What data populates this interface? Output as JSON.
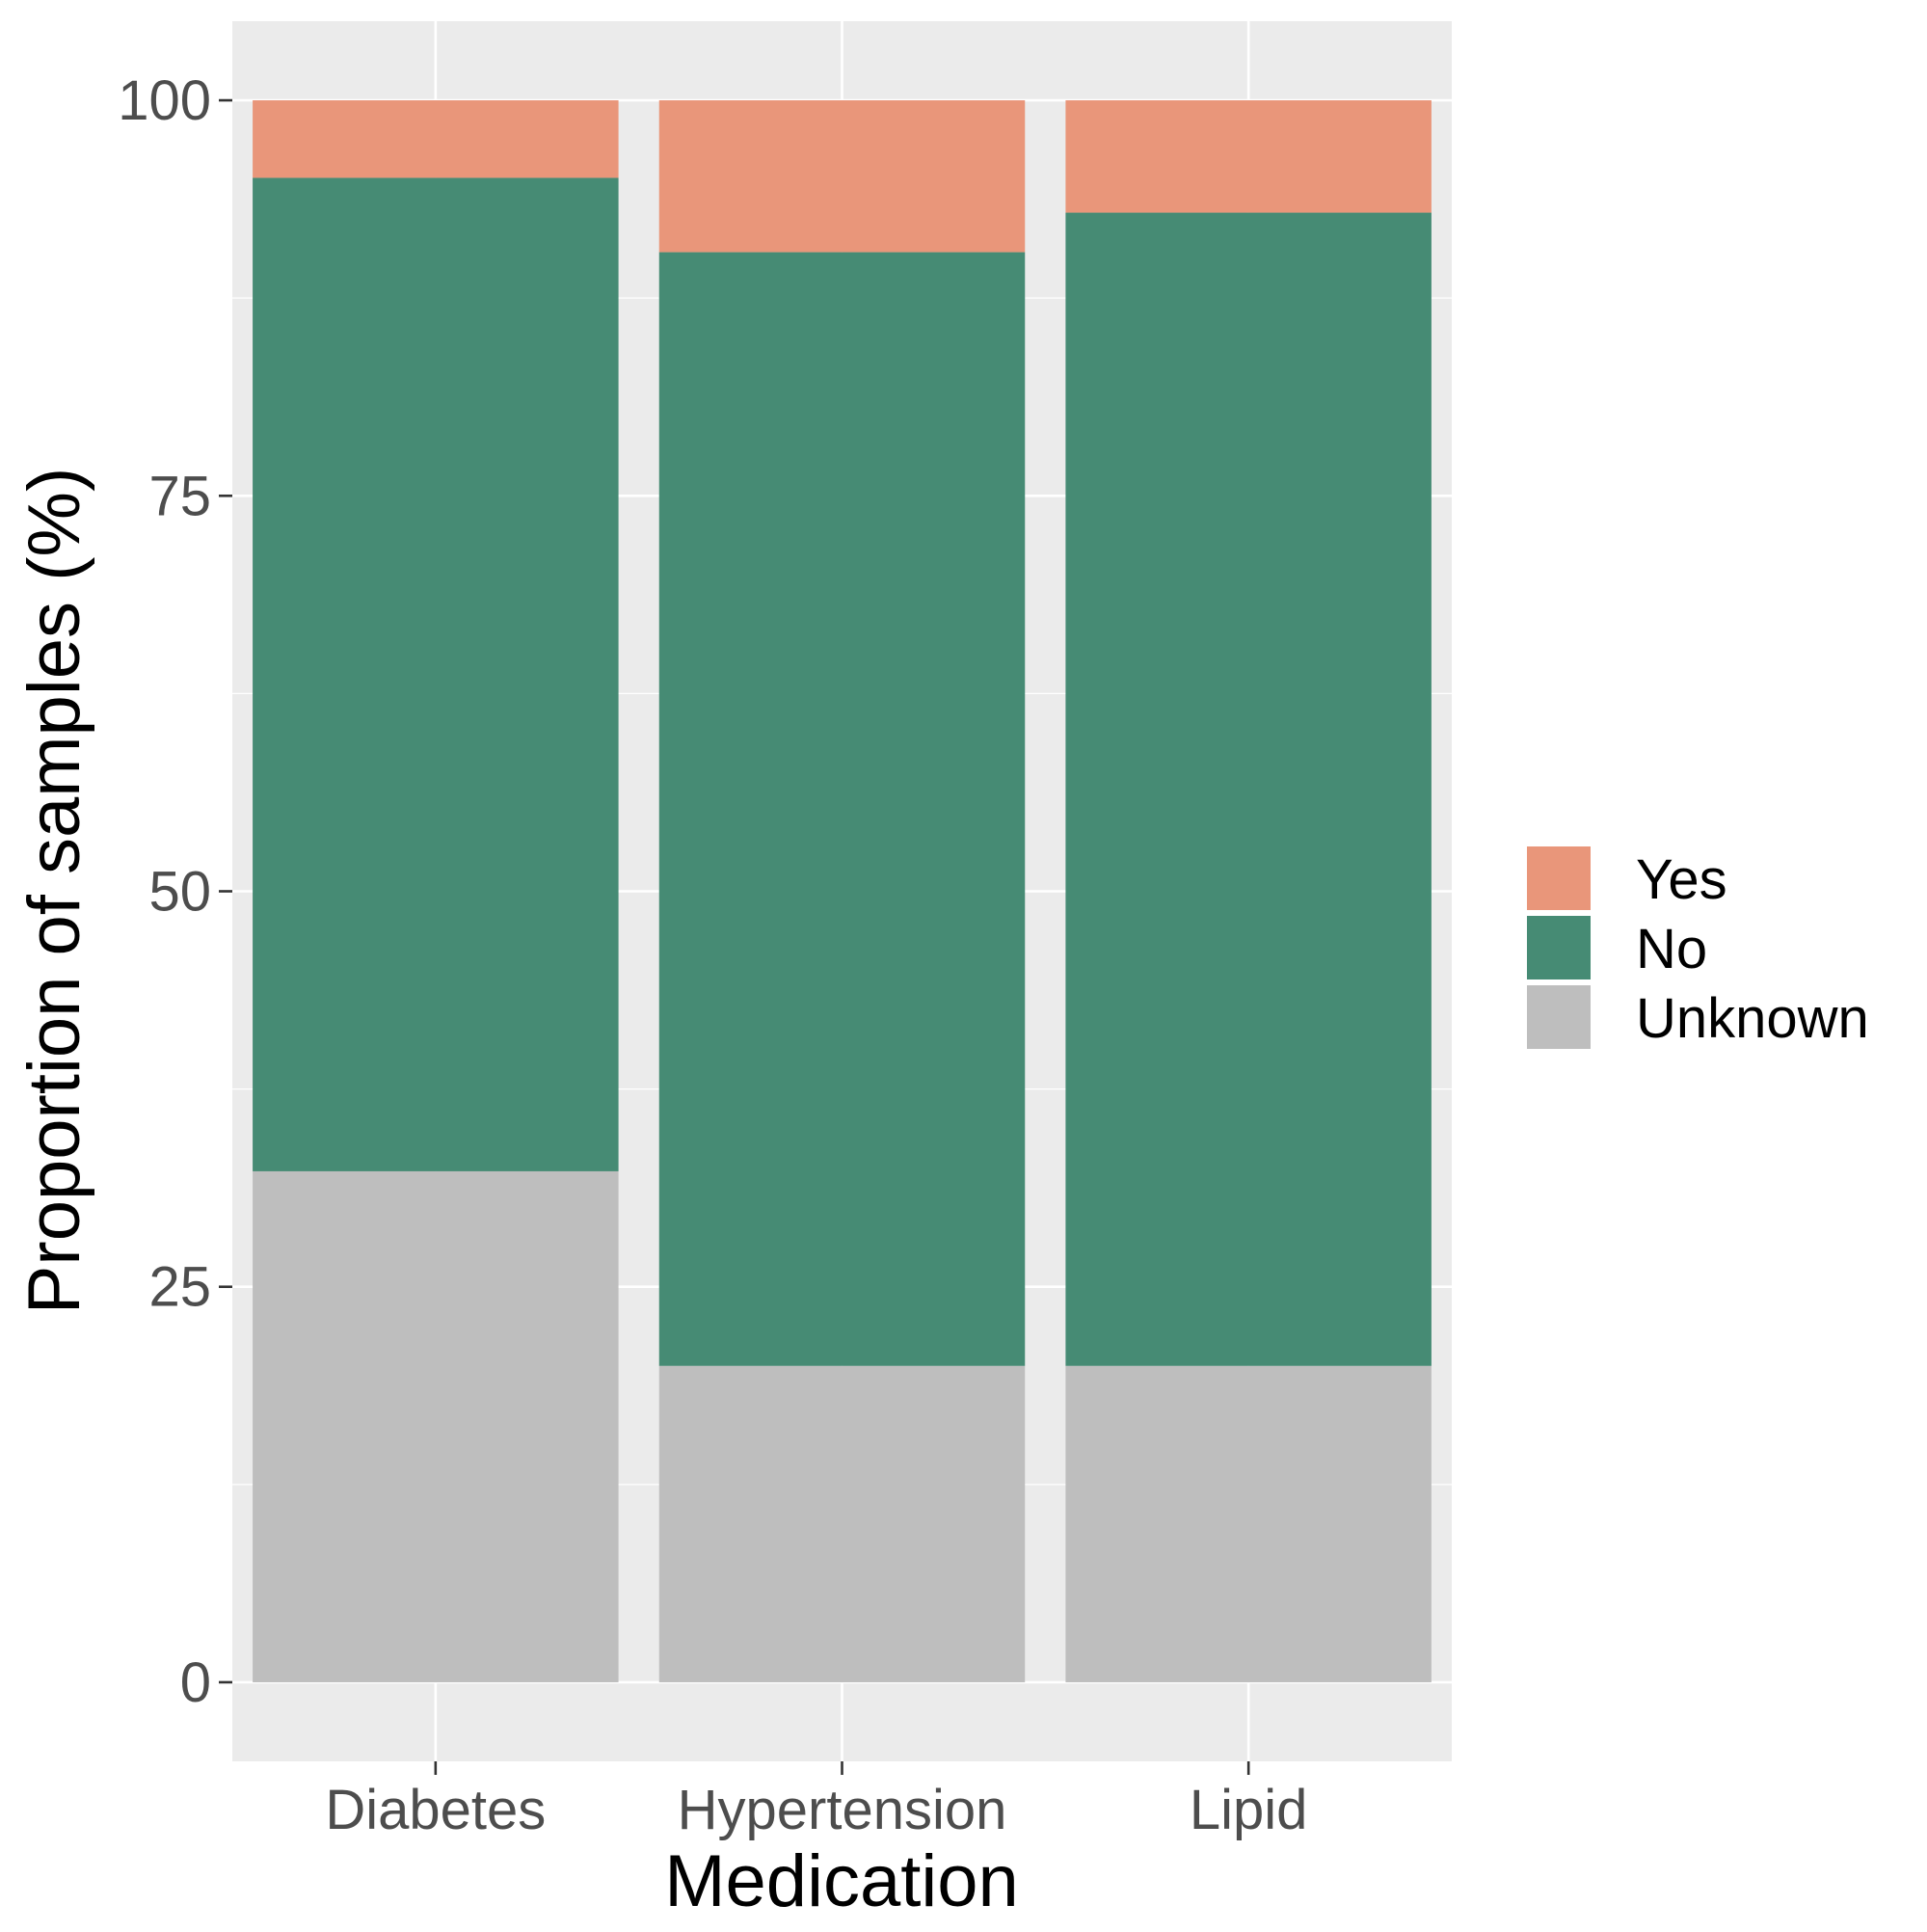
{
  "chart_data": {
    "type": "bar",
    "stacked": true,
    "categories": [
      "Diabetes",
      "Hypertension",
      "Lipid"
    ],
    "series": [
      {
        "name": "Unknown",
        "color": "#BEBEBE",
        "values": [
          32.3,
          20.0,
          20.0
        ]
      },
      {
        "name": "No",
        "color": "#468B74",
        "values": [
          62.8,
          70.4,
          72.9
        ]
      },
      {
        "name": "Yes",
        "color": "#E9967A",
        "values": [
          4.9,
          9.6,
          7.1
        ]
      }
    ],
    "legend_order": [
      "Yes",
      "No",
      "Unknown"
    ],
    "xlabel": "Medication",
    "ylabel": "Proportion of samples (%)",
    "ylim": [
      -5,
      105
    ],
    "yticks": [
      0,
      25,
      50,
      75,
      100
    ],
    "ytick_labels": [
      "0",
      "25",
      "50",
      "75",
      "100"
    ],
    "grid": true,
    "legend_position": "right",
    "panel_background": "#EBEBEB",
    "grid_color": "#FFFFFF"
  }
}
